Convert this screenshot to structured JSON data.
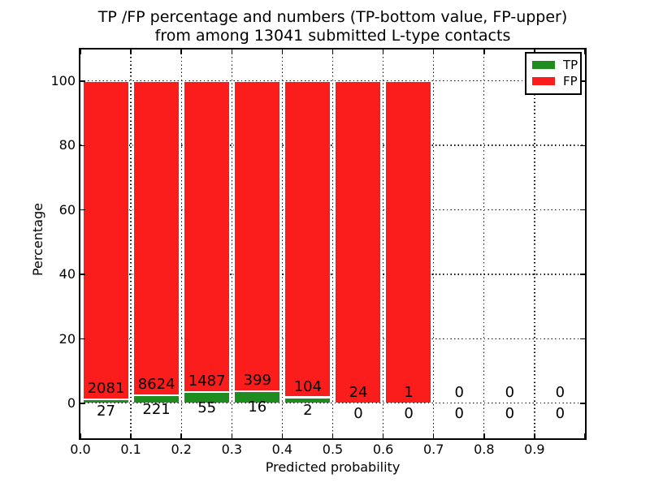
{
  "figure": {
    "title_line1": "TP /FP percentage and numbers (TP-bottom value, FP-upper)",
    "title_line2": "from among 13041 submitted L-type contacts"
  },
  "colors": {
    "tp_green": "#1e8c1e",
    "fp_red": "#fb1c1c",
    "grid": "#000000",
    "background": "#ffffff",
    "text": "#000000"
  },
  "chart_data": {
    "type": "bar",
    "stacked": true,
    "title": "TP /FP percentage and numbers (TP-bottom value, FP-upper) from among 13041 submitted L-type contacts",
    "xlabel": "Predicted probability",
    "ylabel": "Percentage",
    "xlim": [
      0.0,
      1.0
    ],
    "ylim": [
      -11,
      110
    ],
    "x_tick_labels": [
      "0.0",
      "0.1",
      "0.2",
      "0.3",
      "0.4",
      "0.5",
      "0.6",
      "0.7",
      "0.8",
      "0.9"
    ],
    "y_tick_values": [
      0,
      20,
      40,
      60,
      80,
      100
    ],
    "grid": "dotted",
    "legend_position": "upper right",
    "bin_width": 0.1,
    "total_contacts": 13041,
    "bins": [
      {
        "range": [
          0.0,
          0.1
        ],
        "tp": 27,
        "fp": 2081,
        "tp_pct": 1.281,
        "fp_pct": 98.719
      },
      {
        "range": [
          0.1,
          0.2
        ],
        "tp": 221,
        "fp": 8624,
        "tp_pct": 2.499,
        "fp_pct": 97.501
      },
      {
        "range": [
          0.2,
          0.3
        ],
        "tp": 55,
        "fp": 1487,
        "tp_pct": 3.567,
        "fp_pct": 96.433
      },
      {
        "range": [
          0.3,
          0.4
        ],
        "tp": 16,
        "fp": 399,
        "tp_pct": 3.855,
        "fp_pct": 96.145
      },
      {
        "range": [
          0.4,
          0.5
        ],
        "tp": 2,
        "fp": 104,
        "tp_pct": 1.887,
        "fp_pct": 98.113
      },
      {
        "range": [
          0.5,
          0.6
        ],
        "tp": 0,
        "fp": 24,
        "tp_pct": 0,
        "fp_pct": 100
      },
      {
        "range": [
          0.6,
          0.7
        ],
        "tp": 0,
        "fp": 1,
        "tp_pct": 0,
        "fp_pct": 100
      },
      {
        "range": [
          0.7,
          0.8
        ],
        "tp": 0,
        "fp": 0,
        "tp_pct": 0,
        "fp_pct": 0
      },
      {
        "range": [
          0.8,
          0.9
        ],
        "tp": 0,
        "fp": 0,
        "tp_pct": 0,
        "fp_pct": 0
      },
      {
        "range": [
          0.9,
          1.0
        ],
        "tp": 0,
        "fp": 0,
        "tp_pct": 0,
        "fp_pct": 0
      }
    ],
    "series": [
      {
        "name": "TP",
        "color": "#1e8c1e",
        "values": [
          27,
          221,
          55,
          16,
          2,
          0,
          0,
          0,
          0,
          0
        ]
      },
      {
        "name": "FP",
        "color": "#fb1c1c",
        "values": [
          2081,
          8624,
          1487,
          399,
          104,
          24,
          1,
          0,
          0,
          0
        ]
      }
    ]
  }
}
